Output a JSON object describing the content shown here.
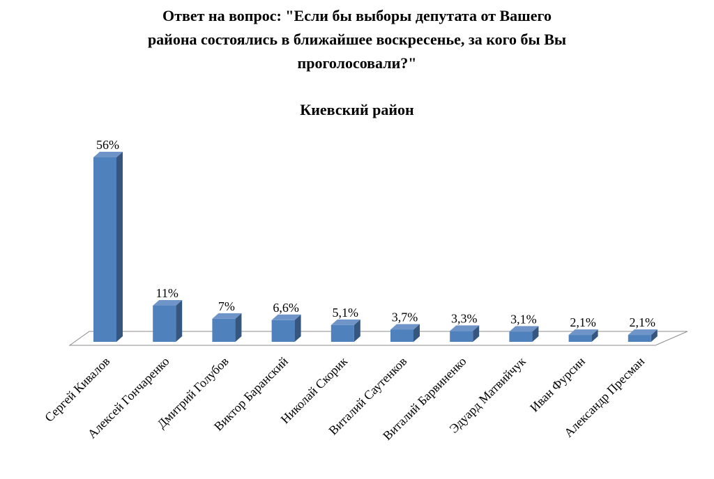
{
  "chart_data": {
    "type": "bar",
    "title": "Ответ на вопрос: \"Если бы выборы депутата от Вашего района состоялись в ближайшее воскресенье, за кого бы Вы проголосовали?\"",
    "title_lines": [
      "Ответ на вопрос: \"Если бы выборы депутата от Вашего",
      "района состоялись в ближайшее воскресенье, за кого бы Вы",
      "проголосовали?\""
    ],
    "subtitle": "Киевский район",
    "categories": [
      "Сергей Кивалов",
      "Алексей Гончаренко",
      "Дмитрий Голубов",
      "Виктор Баранский",
      "Николай Скорик",
      "Виталий Саутенков",
      "Виталий Барвиненко",
      "Эдуард Матвийчук",
      "Иван Фурсин",
      "Александр Пресман"
    ],
    "values": [
      56,
      11,
      7,
      6.6,
      5.1,
      3.7,
      3.3,
      3.1,
      2.1,
      2.1
    ],
    "data_labels": [
      "56%",
      "11%",
      "7%",
      "6,6%",
      "5,1%",
      "3,7%",
      "3,3%",
      "3,1%",
      "2,1%",
      "2,1%"
    ],
    "ylim": [
      0,
      56
    ],
    "grid": false,
    "legend": "none",
    "colors": {
      "bar_front": "#4f81bd",
      "bar_side": "#35577f",
      "bar_top": "#6f95c8",
      "floor_stroke": "#8c8c8c"
    }
  }
}
